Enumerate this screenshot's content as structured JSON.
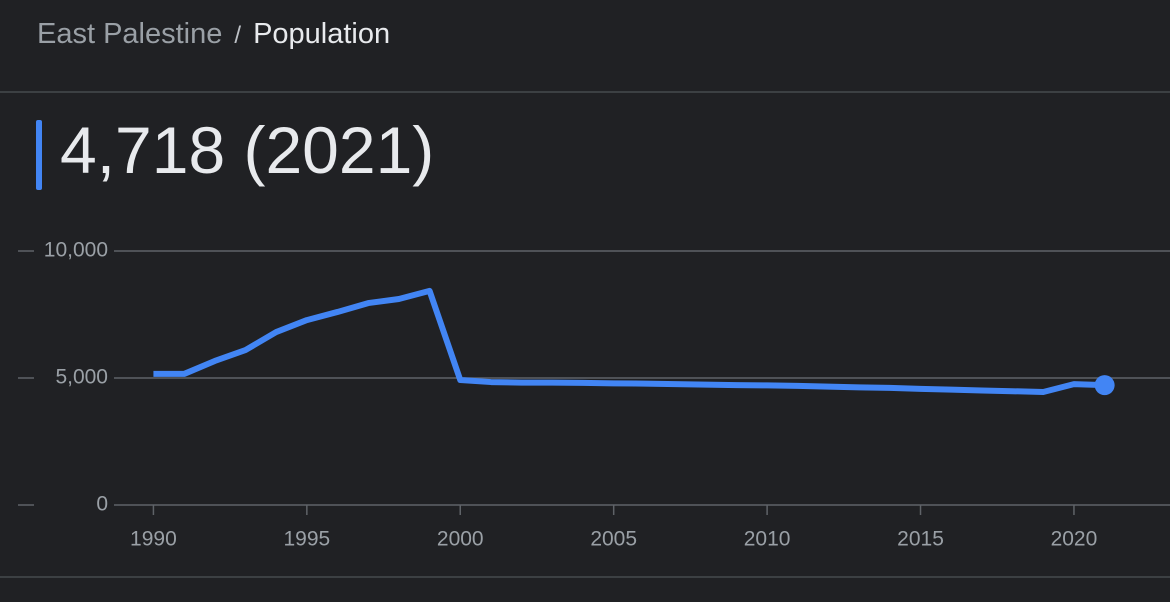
{
  "breadcrumb": {
    "place": "East Palestine",
    "separator": "/",
    "topic": "Population"
  },
  "headline": "4,718 (2021)",
  "chart_data": {
    "type": "line",
    "x": [
      1990,
      1991,
      1992,
      1993,
      1994,
      1995,
      1996,
      1997,
      1998,
      1999,
      2000,
      2001,
      2002,
      2003,
      2004,
      2005,
      2006,
      2007,
      2008,
      2009,
      2010,
      2011,
      2012,
      2013,
      2014,
      2015,
      2016,
      2017,
      2018,
      2019,
      2020,
      2021
    ],
    "values": [
      5160,
      5160,
      5670,
      6100,
      6810,
      7280,
      7600,
      7950,
      8110,
      8430,
      4920,
      4840,
      4820,
      4820,
      4810,
      4790,
      4780,
      4760,
      4740,
      4720,
      4710,
      4690,
      4660,
      4630,
      4610,
      4570,
      4540,
      4510,
      4480,
      4450,
      4760,
      4718
    ],
    "color": "#4285f4",
    "xlim": [
      1985,
      2023
    ],
    "xticks": [
      1990,
      1995,
      2000,
      2005,
      2010,
      2015,
      2020
    ],
    "ylim": [
      0,
      10000
    ],
    "yticks": [
      0,
      {
        "value": 5000,
        "label": "5,000"
      },
      {
        "value": 10000,
        "label": "10,000"
      }
    ],
    "grid": true
  }
}
